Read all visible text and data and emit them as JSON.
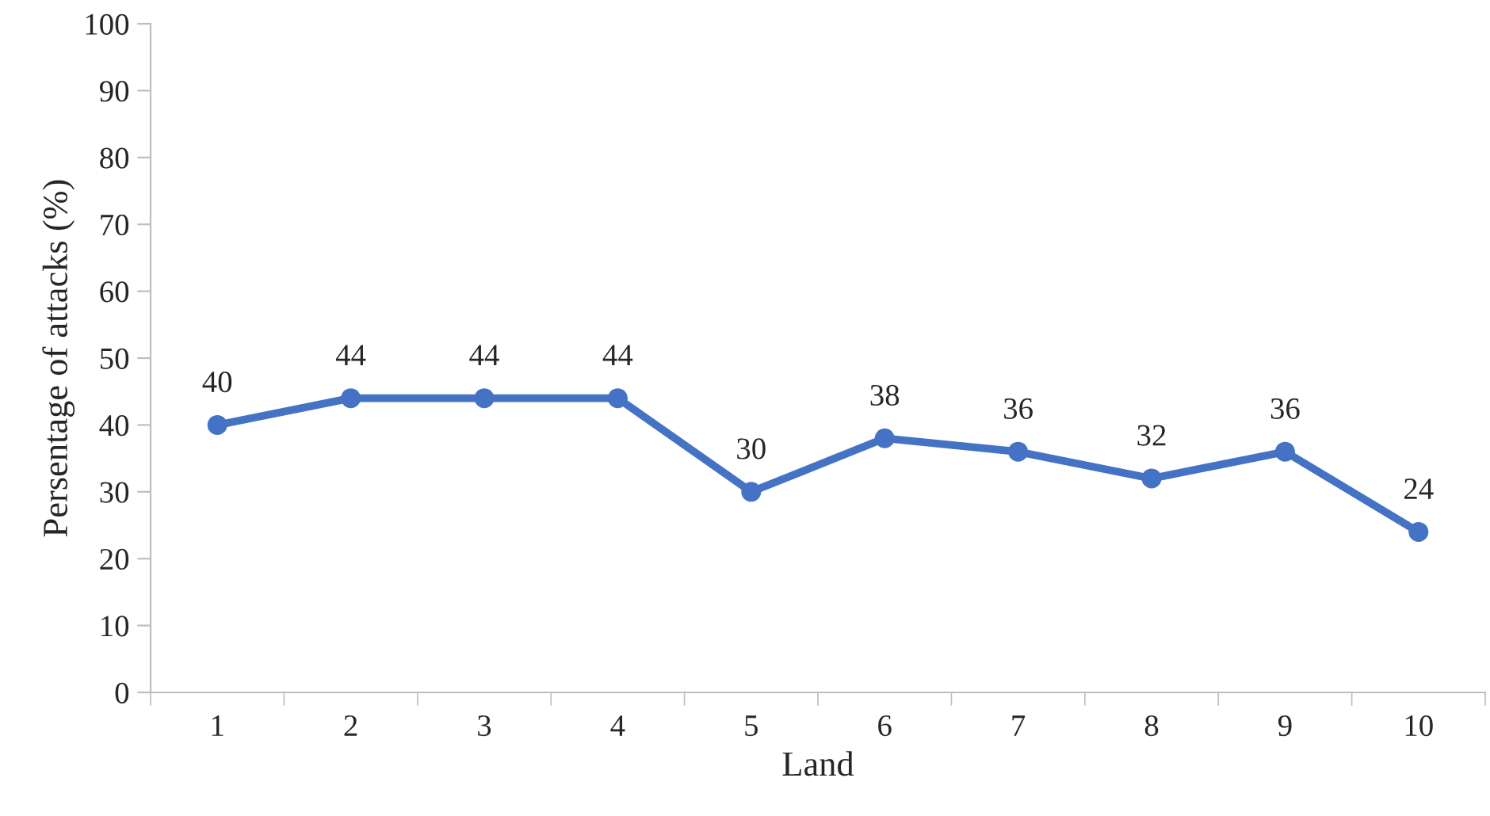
{
  "chart_data": {
    "type": "line",
    "xlabel": "Land",
    "ylabel": "Persentage of attacks (%)",
    "categories": [
      "1",
      "2",
      "3",
      "4",
      "5",
      "6",
      "7",
      "8",
      "9",
      "10"
    ],
    "series": [
      {
        "color": "#4472c4",
        "values": [
          40,
          44,
          44,
          44,
          30,
          38,
          36,
          32,
          36,
          24
        ]
      }
    ],
    "ylim": [
      0,
      100
    ],
    "yticks": [
      0,
      10,
      20,
      30,
      40,
      50,
      60,
      70,
      80,
      90,
      100
    ],
    "grid": false,
    "legend": false,
    "marker": "circle",
    "line_style": "solid",
    "data_labels": true
  }
}
